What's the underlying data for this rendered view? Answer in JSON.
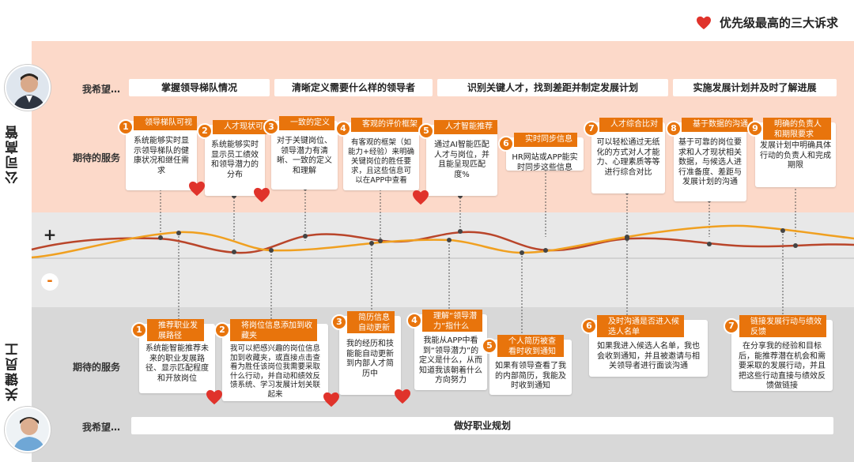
{
  "legend": {
    "text": "优先级最高的三大诉求",
    "icon": "heart-icon",
    "heart_color": "#e0332b"
  },
  "colors": {
    "accent": "#e8740c",
    "curve_dark": "#b9452a",
    "curve_light": "#f0a020",
    "top_band": "#fcd9c9"
  },
  "top": {
    "side_label": "公司高管",
    "wish_label": "我希望…",
    "service_label": "期待的服务",
    "wishes": [
      "掌握领导梯队情况",
      "清晰定义需要什么样的领导者",
      "识别关键人才，找到差距并制定发展计划",
      "实施发展计划并及时了解进展"
    ],
    "cards": [
      {
        "num": "1",
        "title": "领导梯队可视",
        "body": "系统能够实时显示领导梯队的健康状况和继任需求"
      },
      {
        "num": "2",
        "title": "人才现状可视",
        "body": "系统能够实时显示员工绩效和领导潜力的分布"
      },
      {
        "num": "3",
        "title": "一致的定义",
        "body": "对于关键岗位、领导潜力有清晰、一致的定义和理解"
      },
      {
        "num": "4",
        "title": "客观的评价框架",
        "body": "有客观的框架（如能力+经验）来明确关键岗位的胜任要求，且这些信息可以在APP中查看"
      },
      {
        "num": "5",
        "title": "人才智能推荐",
        "body": "通过AI智能匹配人才与岗位，并且能呈现匹配度%"
      },
      {
        "num": "6",
        "title": "实时同步信息",
        "body": "HR网站或APP能实时同步这些信息"
      },
      {
        "num": "7",
        "title": "人才综合比对",
        "body": "可以轻松通过无纸化的方式对人才能力、心理素质等等进行综合对比"
      },
      {
        "num": "8",
        "title": "基于数据的沟通",
        "body": "基于可靠的岗位要求和人才现状相关数据，与候选人进行准备度、差距与发展计划的沟通"
      },
      {
        "num": "9",
        "title": "明确的负责人和期限要求",
        "body": "发展计划中明确具体行动的负责人和完成期限"
      }
    ]
  },
  "bottom": {
    "side_label": "关键员工",
    "wish_label": "我希望…",
    "service_label": "期待的服务",
    "wish": "做好职业规划",
    "cards": [
      {
        "num": "1",
        "title": "推荐职业发展路径",
        "body": "系统能智能推荐未来的职业发展路径、显示匹配程度和开放岗位"
      },
      {
        "num": "2",
        "title": "将岗位信息添加到收藏夹",
        "body": "我可以把感兴趣的岗位信息加到收藏夹，或直接点击查看为胜任该岗位我需要采取什么行动，并自动和绩效反馈系统、学习发展计划关联起来"
      },
      {
        "num": "3",
        "title": "简历信息自动更新",
        "body": "我的经历和技能能自动更新到内部人才简历中"
      },
      {
        "num": "4",
        "title": "理解“领导潜力”指什么",
        "body": "我能从APP中看到“领导潜力”的定义是什么，从而知道我该朝着什么方向努力"
      },
      {
        "num": "5",
        "title": "个人简历被查看时收到通知",
        "body": "如果有领导查看了我的内部简历，我能及时收到通知"
      },
      {
        "num": "6",
        "title": "及时沟通是否进入候选人名单",
        "body": "如果我进入候选人名单，我也会收到通知，并且被邀请与相关领导者进行面谈沟通"
      },
      {
        "num": "7",
        "title": "链接发展行动与绩效反馈",
        "body": "在分享我的经验和目标后，能推荐潜在机会和需要采取的发展行动，并且把这些行动直接与绩效反馈做链接"
      }
    ]
  }
}
